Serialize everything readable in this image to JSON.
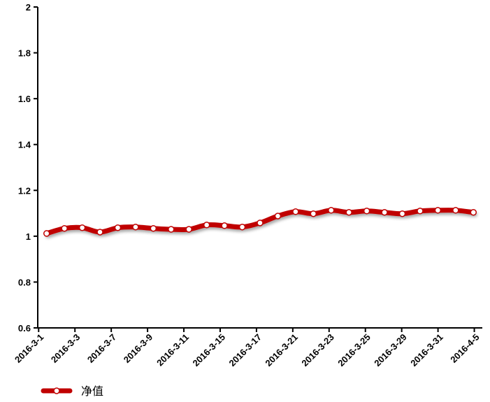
{
  "chart_data": {
    "type": "line",
    "categories": [
      "2016-3-1",
      null,
      "2016-3-3",
      null,
      "2016-3-7",
      null,
      "2016-3-9",
      null,
      "2016-3-11",
      null,
      "2016-3-15",
      null,
      "2016-3-17",
      null,
      "2016-3-21",
      null,
      "2016-3-23",
      null,
      "2016-3-25",
      null,
      "2016-3-29",
      null,
      "2016-3-31",
      null,
      "2016-4-5"
    ],
    "series": [
      {
        "name": "净值",
        "color": "#c00000",
        "values": [
          1.012,
          1.034,
          1.037,
          1.018,
          1.037,
          1.04,
          1.034,
          1.03,
          1.03,
          1.049,
          1.046,
          1.04,
          1.058,
          1.088,
          1.107,
          1.098,
          1.113,
          1.104,
          1.11,
          1.104,
          1.098,
          1.11,
          1.113,
          1.113,
          1.104
        ]
      }
    ],
    "ylim": [
      0.6,
      2
    ],
    "yticks": [
      0.6,
      0.8,
      1,
      1.2,
      1.4,
      1.6,
      1.8,
      2
    ],
    "legend": "bottom-left"
  }
}
